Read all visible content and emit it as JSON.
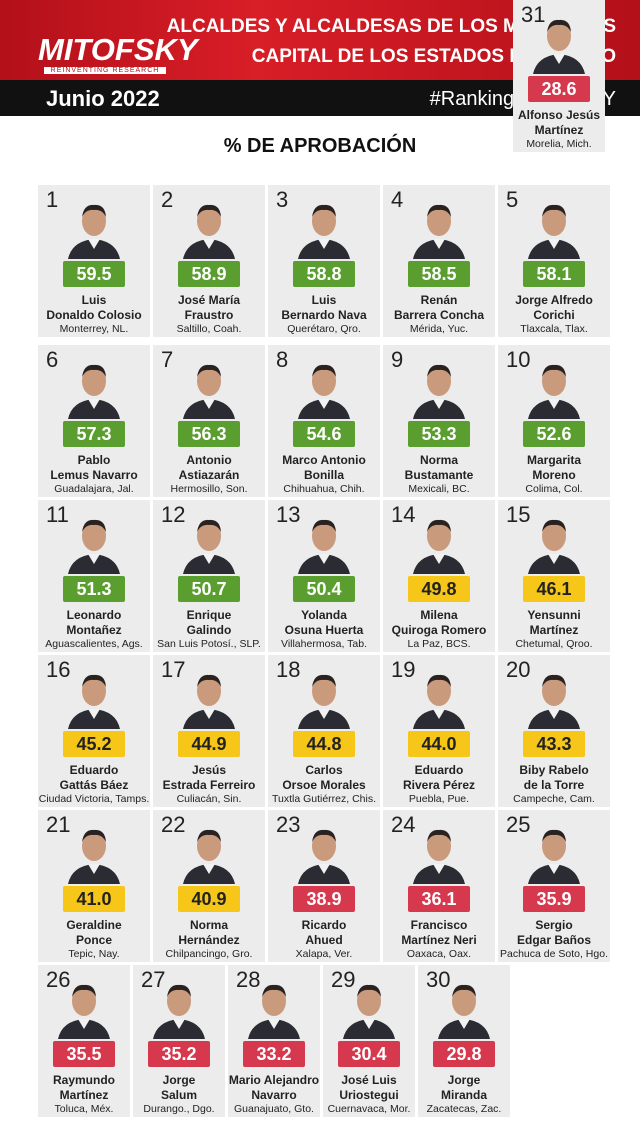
{
  "header": {
    "brand": "MITOFSKY",
    "tagline": "REINVENTING RESEARCH",
    "title_lines": [
      "ALCALDES Y ALCALDESAS DE LOS MUNICIPIOS",
      "CAPITAL DE LOS ESTADOS DE MÉXICO"
    ],
    "date": "Junio 2022",
    "hashtag": "#RankingMITOFSKY"
  },
  "subtitle": "% DE APROBACIÓN",
  "cards": [
    {
      "rank": 1,
      "value": "59.5",
      "color": "#5a9e2f",
      "name": [
        "Luis",
        "Donaldo Colosio"
      ],
      "city": "Monterrey, NL."
    },
    {
      "rank": 2,
      "value": "58.9",
      "color": "#5a9e2f",
      "name": [
        "José María",
        "Fraustro"
      ],
      "city": "Saltillo, Coah."
    },
    {
      "rank": 3,
      "value": "58.8",
      "color": "#5a9e2f",
      "name": [
        "Luis",
        "Bernardo Nava"
      ],
      "city": "Querétaro, Qro."
    },
    {
      "rank": 4,
      "value": "58.5",
      "color": "#5a9e2f",
      "name": [
        "Renán",
        "Barrera Concha"
      ],
      "city": "Mérida, Yuc."
    },
    {
      "rank": 5,
      "value": "58.1",
      "color": "#5a9e2f",
      "name": [
        "Jorge Alfredo",
        "Corichi"
      ],
      "city": "Tlaxcala, Tlax."
    },
    {
      "rank": 6,
      "value": "57.3",
      "color": "#5a9e2f",
      "name": [
        "Pablo",
        "Lemus Navarro"
      ],
      "city": "Guadalajara, Jal."
    },
    {
      "rank": 7,
      "value": "56.3",
      "color": "#5a9e2f",
      "name": [
        "Antonio",
        "Astiazarán"
      ],
      "city": "Hermosillo, Son."
    },
    {
      "rank": 8,
      "value": "54.6",
      "color": "#5a9e2f",
      "name": [
        "Marco Antonio",
        "Bonilla"
      ],
      "city": "Chihuahua, Chih."
    },
    {
      "rank": 9,
      "value": "53.3",
      "color": "#5a9e2f",
      "name": [
        "Norma",
        "Bustamante"
      ],
      "city": "Mexicali, BC."
    },
    {
      "rank": 10,
      "value": "52.6",
      "color": "#5a9e2f",
      "name": [
        "Margarita",
        "Moreno"
      ],
      "city": "Colima, Col."
    },
    {
      "rank": 11,
      "value": "51.3",
      "color": "#5a9e2f",
      "name": [
        "Leonardo",
        "Montañez"
      ],
      "city": "Aguascalientes, Ags."
    },
    {
      "rank": 12,
      "value": "50.7",
      "color": "#5a9e2f",
      "name": [
        "Enrique",
        "Galindo"
      ],
      "city": "San Luis Potosí., SLP."
    },
    {
      "rank": 13,
      "value": "50.4",
      "color": "#5a9e2f",
      "name": [
        "Yolanda",
        "Osuna Huerta"
      ],
      "city": "Villahermosa, Tab."
    },
    {
      "rank": 14,
      "value": "49.8",
      "color": "#f6c619",
      "name": [
        "Milena",
        "Quiroga Romero"
      ],
      "city": "La Paz, BCS."
    },
    {
      "rank": 15,
      "value": "46.1",
      "color": "#f6c619",
      "name": [
        "Yensunni",
        "Martínez"
      ],
      "city": "Chetumal, Qroo."
    },
    {
      "rank": 16,
      "value": "45.2",
      "color": "#f6c619",
      "name": [
        "Eduardo",
        "Gattás Báez"
      ],
      "city": "Ciudad Victoria, Tamps."
    },
    {
      "rank": 17,
      "value": "44.9",
      "color": "#f6c619",
      "name": [
        "Jesús",
        "Estrada Ferreiro"
      ],
      "city": "Culiacán, Sin."
    },
    {
      "rank": 18,
      "value": "44.8",
      "color": "#f6c619",
      "name": [
        "Carlos",
        "Orsoe Morales"
      ],
      "city": "Tuxtla Gutiérrez, Chis."
    },
    {
      "rank": 19,
      "value": "44.0",
      "color": "#f6c619",
      "name": [
        "Eduardo",
        "Rivera Pérez"
      ],
      "city": "Puebla, Pue."
    },
    {
      "rank": 20,
      "value": "43.3",
      "color": "#f6c619",
      "name": [
        "Biby Rabelo",
        "de la Torre"
      ],
      "city": "Campeche, Cam."
    },
    {
      "rank": 21,
      "value": "41.0",
      "color": "#f6c619",
      "name": [
        "Geraldine",
        "Ponce"
      ],
      "city": "Tepic, Nay."
    },
    {
      "rank": 22,
      "value": "40.9",
      "color": "#f6c619",
      "name": [
        "Norma",
        "Hernández"
      ],
      "city": "Chilpancingo, Gro."
    },
    {
      "rank": 23,
      "value": "38.9",
      "color": "#d6384d",
      "name": [
        "Ricardo",
        "Ahued"
      ],
      "city": "Xalapa, Ver."
    },
    {
      "rank": 24,
      "value": "36.1",
      "color": "#d6384d",
      "name": [
        "Francisco",
        "Martínez Neri"
      ],
      "city": "Oaxaca, Oax."
    },
    {
      "rank": 25,
      "value": "35.9",
      "color": "#d6384d",
      "name": [
        "Sergio",
        "Edgar Baños"
      ],
      "city": "Pachuca de Soto, Hgo."
    },
    {
      "rank": 26,
      "value": "35.5",
      "color": "#d6384d",
      "name": [
        "Raymundo",
        "Martínez"
      ],
      "city": "Toluca, Méx."
    },
    {
      "rank": 27,
      "value": "35.2",
      "color": "#d6384d",
      "name": [
        "Jorge",
        "Salum"
      ],
      "city": "Durango., Dgo."
    },
    {
      "rank": 28,
      "value": "33.2",
      "color": "#d6384d",
      "name": [
        "Mario Alejandro",
        "Navarro"
      ],
      "city": "Guanajuato, Gto."
    },
    {
      "rank": 29,
      "value": "30.4",
      "color": "#d6384d",
      "name": [
        "José Luis",
        "Uriostegui"
      ],
      "city": "Cuernavaca, Mor."
    },
    {
      "rank": 30,
      "value": "29.8",
      "color": "#d6384d",
      "name": [
        "Jorge",
        "Miranda"
      ],
      "city": "Zacatecas, Zac."
    },
    {
      "rank": 31,
      "value": "28.6",
      "color": "#d6384d",
      "name": [
        "Alfonso Jesús",
        "Martínez"
      ],
      "city": "Morelia, Mich."
    }
  ]
}
